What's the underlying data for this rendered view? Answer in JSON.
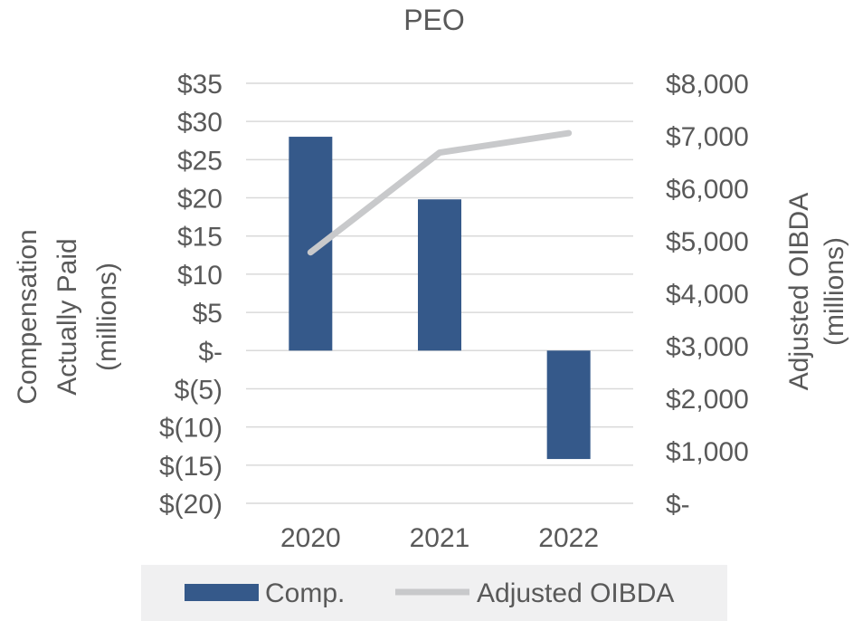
{
  "chart_data": {
    "type": "bar",
    "title": "PEO",
    "categories": [
      "2020",
      "2021",
      "2022"
    ],
    "series": [
      {
        "name": "Comp.",
        "kind": "bar",
        "axis": "left",
        "values": [
          28.0,
          19.8,
          -14.2
        ],
        "color": "#35598a"
      },
      {
        "name": "Adjusted OIBDA",
        "kind": "line",
        "axis": "right",
        "values": [
          4780,
          6680,
          7050
        ],
        "color": "#c8c9cb"
      }
    ],
    "ylabel_left": [
      "Compensation",
      "Actually Paid",
      "(millions)"
    ],
    "ylabel_right": [
      "Adjusted OIBDA",
      "(millions)"
    ],
    "ylim_left": [
      -20,
      35
    ],
    "ylim_right": [
      0,
      8000
    ],
    "yticks_left": [
      "$35",
      "$30",
      "$25",
      "$20",
      "$15",
      "$10",
      "$5",
      "$-",
      "$(5)",
      "$(10)",
      "$(15)",
      "$(20)"
    ],
    "yticks_right": [
      "$8,000",
      "$7,000",
      "$6,000",
      "$5,000",
      "$4,000",
      "$3,000",
      "$2,000",
      "$1,000",
      "$-"
    ],
    "grid": true,
    "legend_position": "bottom",
    "legend_background": "#f0f0f1",
    "grid_color": "#d9d9d9"
  }
}
